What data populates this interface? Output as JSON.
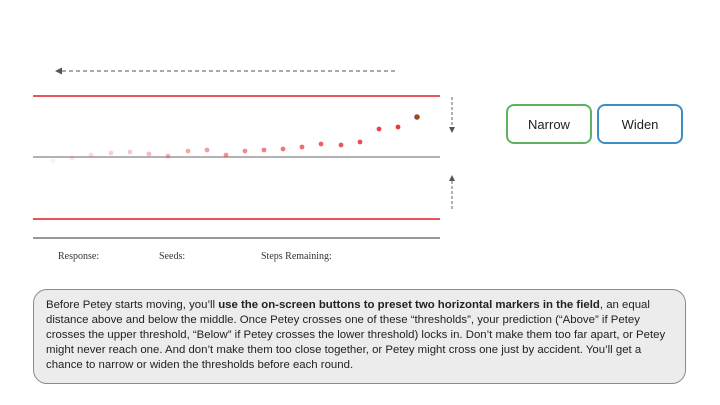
{
  "buttons": {
    "narrow_label": "Narrow",
    "widen_label": "Widen",
    "narrow_color": "#5fb35f",
    "widen_color": "#3e8ec4"
  },
  "status": {
    "response_label": "Response:",
    "seeds_label": "Seeds:",
    "steps_label": "Steps Remaining:"
  },
  "instructions": {
    "part1": "Before Petey starts moving, you’ll ",
    "bold": "use the on-screen buttons to preset two horizontal markers in the field",
    "part2": ", an equal distance above and below the middle. Once Petey crosses one of these “thresholds”, your prediction (“Above” if Petey crosses the upper threshold, “Below” if Petey crosses the lower threshold) locks in. Don’t make them too far apart, or Petey might never reach one. And don’t make them too close together, or Petey might cross one just by accident. You’ll get a chance to narrow or widen the thresholds before each round."
  },
  "colors": {
    "threshold": "#e8545d",
    "midline": "#999999",
    "trail": "#e8383e",
    "petey": "#9b4a22"
  },
  "icons": [
    "left-arrow-icon",
    "down-arrow-icon",
    "up-arrow-icon"
  ]
}
